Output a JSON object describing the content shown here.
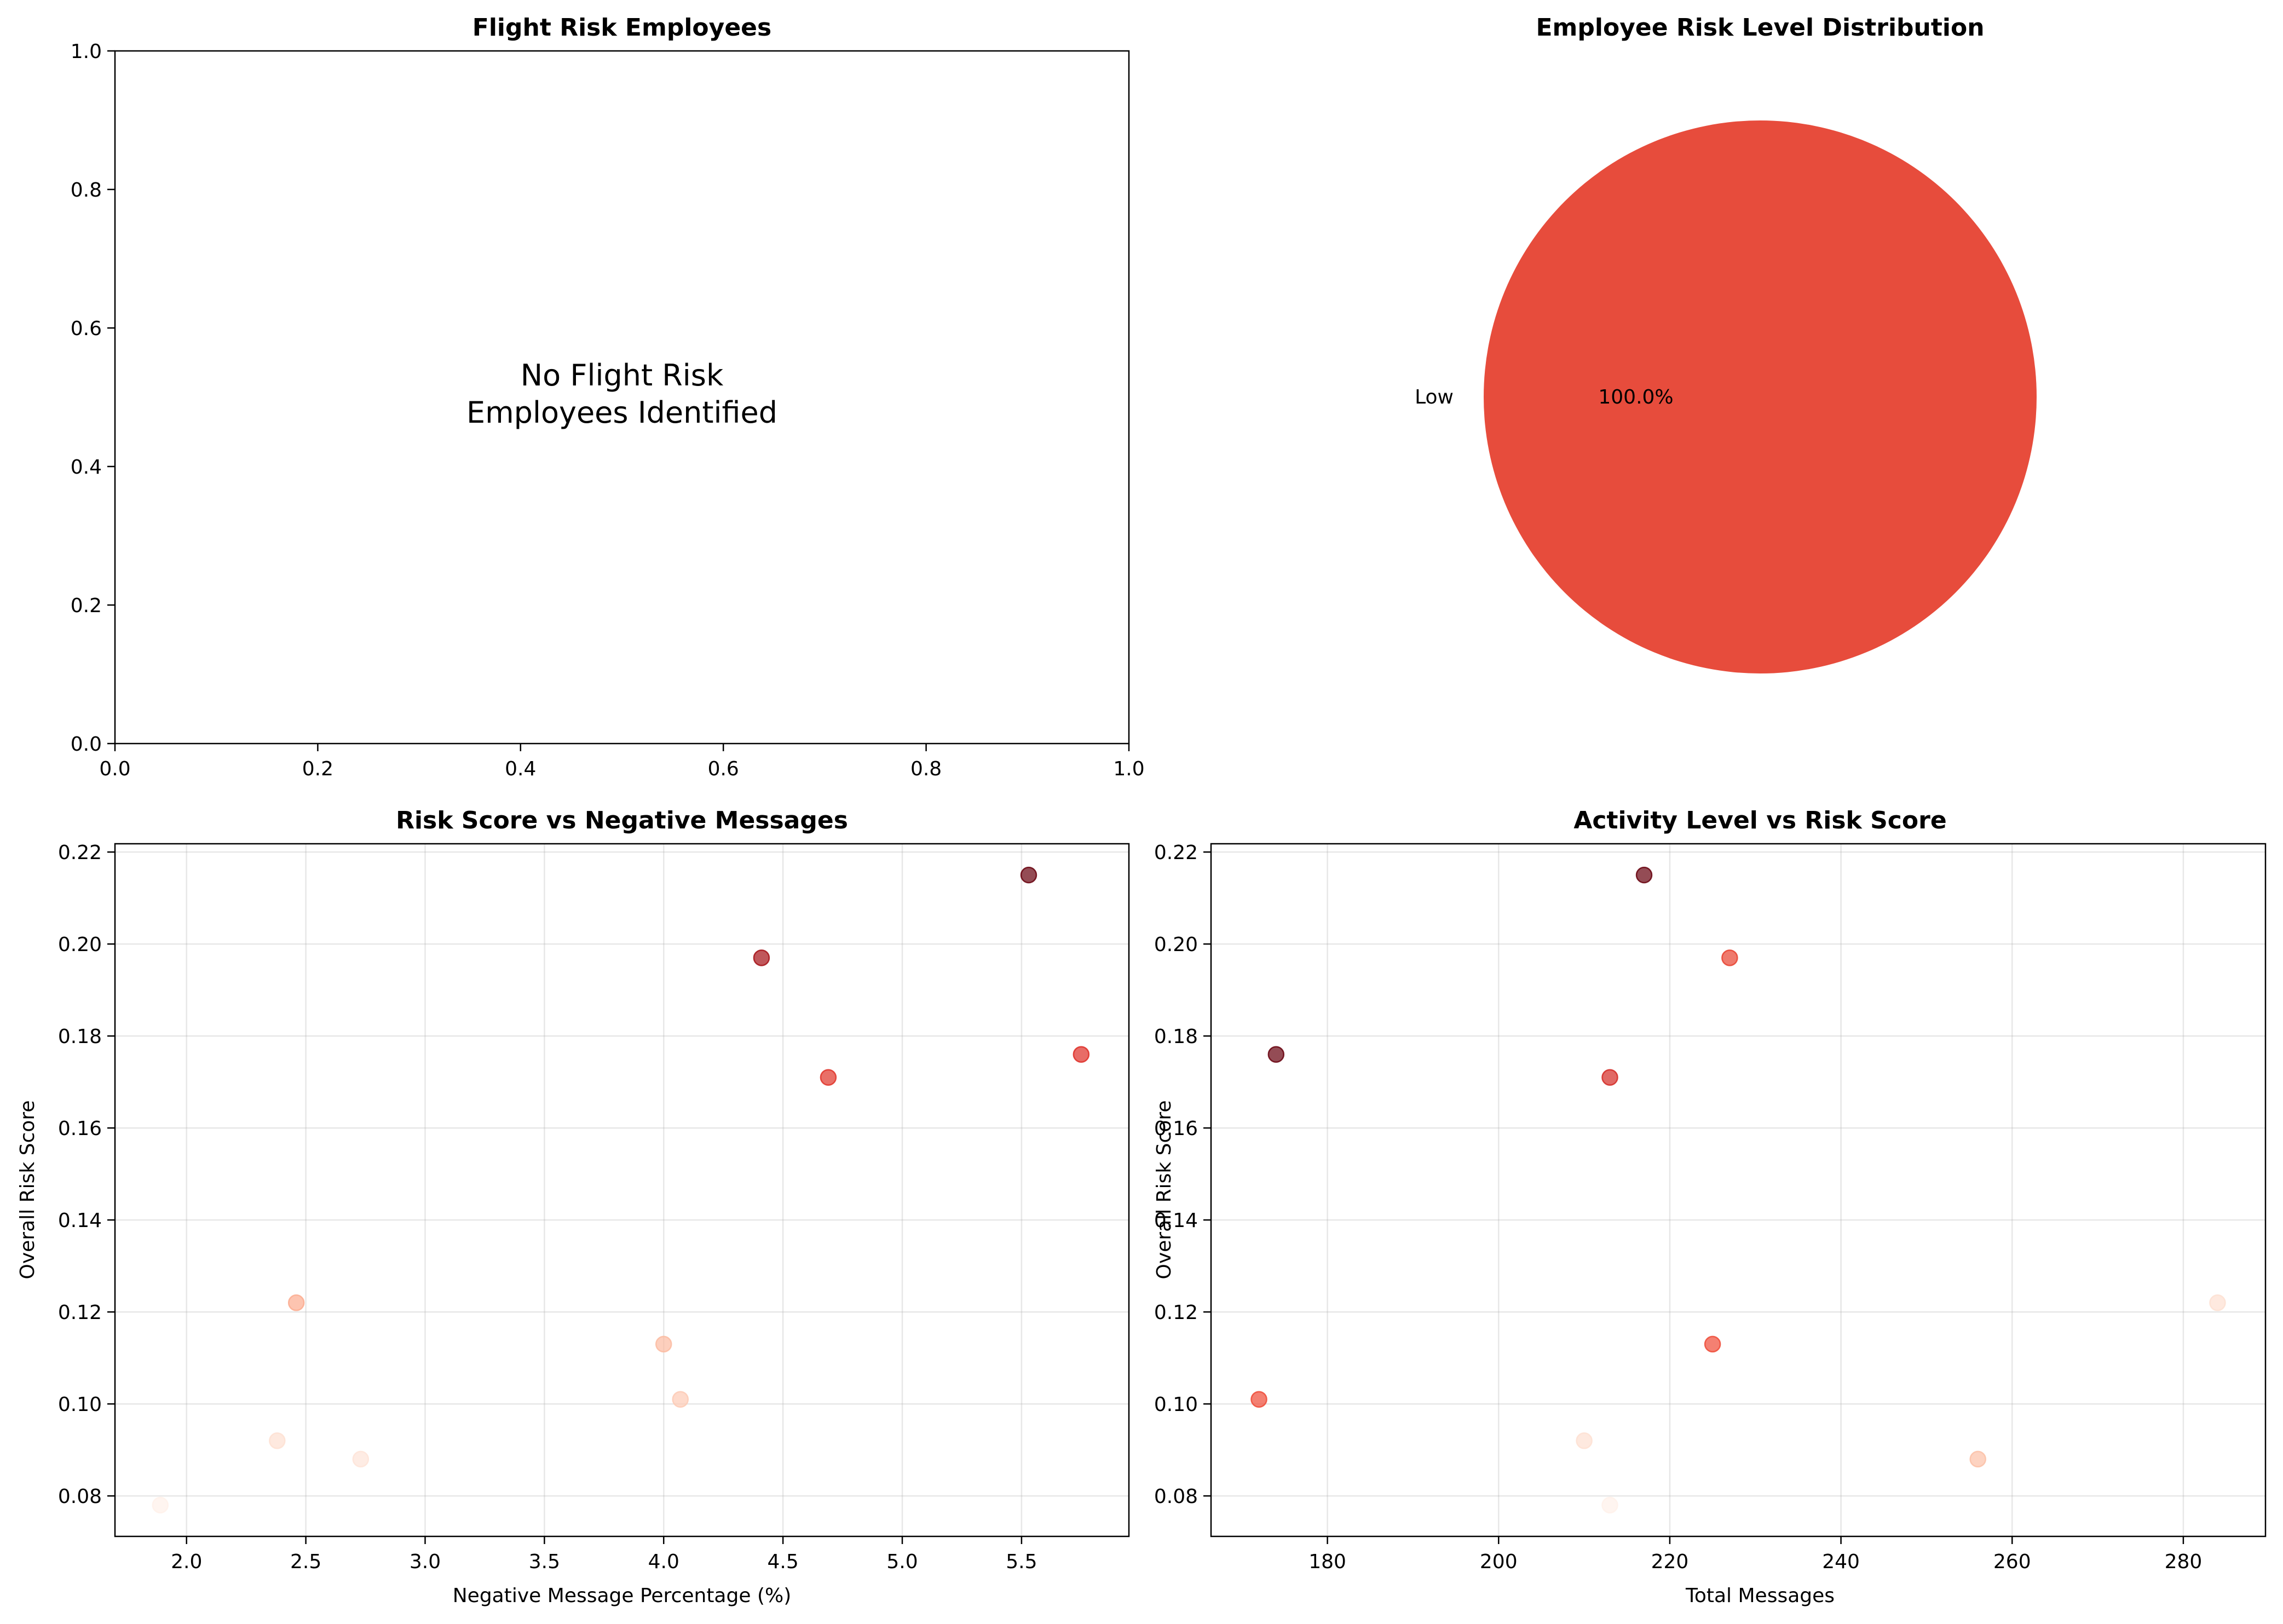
{
  "chart_data": [
    {
      "type": "table",
      "title": "Flight Risk Employees",
      "message_line1": "No Flight Risk",
      "message_line2": "Employees Identified",
      "xlim": [
        0,
        1
      ],
      "ylim": [
        0,
        1
      ],
      "xticks": [
        "0.0",
        "0.2",
        "0.4",
        "0.6",
        "0.8",
        "1.0"
      ],
      "yticks": [
        "0.0",
        "0.2",
        "0.4",
        "0.6",
        "0.8",
        "1.0"
      ],
      "xlabel": "",
      "ylabel": ""
    },
    {
      "type": "pie",
      "title": "Employee Risk Level Distribution",
      "slices": [
        {
          "label": "Low",
          "value": 100,
          "pct_label": "100.0%",
          "color": "#e74c3c"
        }
      ]
    },
    {
      "type": "scatter",
      "title": "Risk Score vs Negative Messages",
      "xlabel": "Negative Message Percentage (%)",
      "ylabel": "Overall Risk Score",
      "xlim": [
        1.7,
        5.95
      ],
      "ylim": [
        0.0712,
        0.2218
      ],
      "xticks": [
        2.0,
        2.5,
        3.0,
        3.5,
        4.0,
        4.5,
        5.0,
        5.5
      ],
      "xtick_labels": [
        "2.0",
        "2.5",
        "3.0",
        "3.5",
        "4.0",
        "4.5",
        "5.0",
        "5.5"
      ],
      "yticks": [
        0.08,
        0.1,
        0.12,
        0.14,
        0.16,
        0.18,
        0.2,
        0.22
      ],
      "ytick_labels": [
        "0.08",
        "0.10",
        "0.12",
        "0.14",
        "0.16",
        "0.18",
        "0.20",
        "0.22"
      ],
      "grid": true,
      "points": [
        {
          "x": 5.53,
          "y": 0.215,
          "color": "#67000d"
        },
        {
          "x": 4.41,
          "y": 0.197,
          "color": "#a50f15"
        },
        {
          "x": 5.75,
          "y": 0.176,
          "color": "#de2d26"
        },
        {
          "x": 4.69,
          "y": 0.171,
          "color": "#e03328"
        },
        {
          "x": 2.46,
          "y": 0.122,
          "color": "#fcab8f"
        },
        {
          "x": 4.0,
          "y": 0.113,
          "color": "#fcbba1"
        },
        {
          "x": 4.07,
          "y": 0.101,
          "color": "#fdcab5"
        },
        {
          "x": 2.38,
          "y": 0.092,
          "color": "#fee0d2"
        },
        {
          "x": 2.73,
          "y": 0.088,
          "color": "#fee4d8"
        },
        {
          "x": 1.89,
          "y": 0.078,
          "color": "#fff1ea"
        }
      ]
    },
    {
      "type": "scatter",
      "title": "Activity Level vs Risk Score",
      "xlabel": "Total Messages",
      "ylabel": "Overall Risk Score",
      "xlim": [
        166.4,
        289.6
      ],
      "ylim": [
        0.0712,
        0.2218
      ],
      "xticks": [
        180,
        200,
        220,
        240,
        260,
        280
      ],
      "xtick_labels": [
        "180",
        "200",
        "220",
        "240",
        "260",
        "280"
      ],
      "yticks": [
        0.08,
        0.1,
        0.12,
        0.14,
        0.16,
        0.18,
        0.2,
        0.22
      ],
      "ytick_labels": [
        "0.08",
        "0.10",
        "0.12",
        "0.14",
        "0.16",
        "0.18",
        "0.20",
        "0.22"
      ],
      "grid": true,
      "points": [
        {
          "x": 217,
          "y": 0.215,
          "color": "#67000d"
        },
        {
          "x": 227,
          "y": 0.197,
          "color": "#e8412f"
        },
        {
          "x": 174,
          "y": 0.176,
          "color": "#67000d"
        },
        {
          "x": 213,
          "y": 0.171,
          "color": "#d42a24"
        },
        {
          "x": 284,
          "y": 0.122,
          "color": "#fde0d2"
        },
        {
          "x": 225,
          "y": 0.113,
          "color": "#ef4a36"
        },
        {
          "x": 172,
          "y": 0.101,
          "color": "#ef4a36"
        },
        {
          "x": 210,
          "y": 0.092,
          "color": "#fee0d2"
        },
        {
          "x": 256,
          "y": 0.088,
          "color": "#fcc0a6"
        },
        {
          "x": 213,
          "y": 0.078,
          "color": "#fff1ea"
        }
      ]
    }
  ]
}
